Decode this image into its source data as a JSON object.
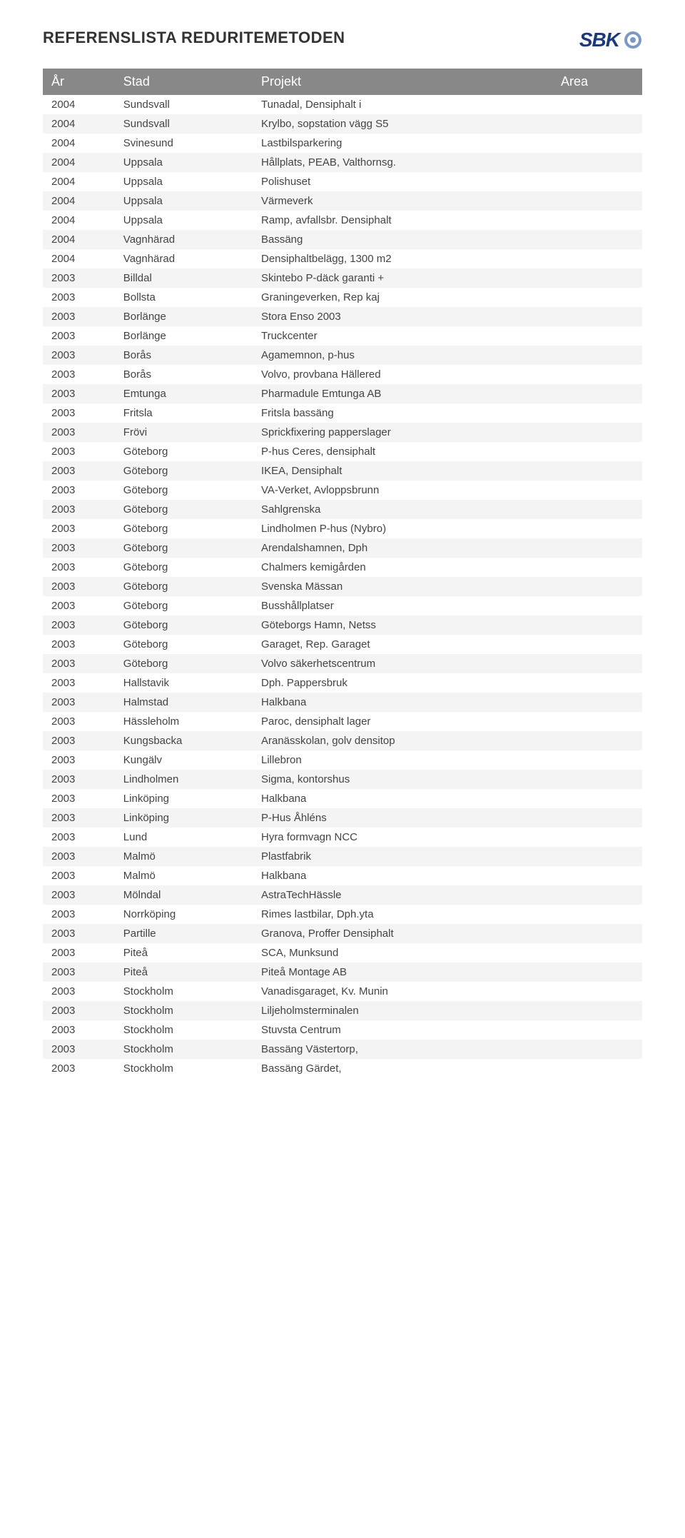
{
  "page": {
    "title": "REFERENSLISTA REDURITEMETODEN",
    "logo_text": "SBK"
  },
  "table": {
    "columns": [
      "År",
      "Stad",
      "Projekt",
      "Area"
    ],
    "header_bg": "#888888",
    "header_color": "#ffffff",
    "row_alt_bg": "#f4f4f4",
    "font_size": 15,
    "rows": [
      [
        "2004",
        "Sundsvall",
        "Tunadal, Densiphalt i",
        ""
      ],
      [
        "2004",
        "Sundsvall",
        "Krylbo, sopstation vägg S5",
        ""
      ],
      [
        "2004",
        "Svinesund",
        "Lastbilsparkering",
        ""
      ],
      [
        "2004",
        "Uppsala",
        "Hållplats, PEAB, Valthornsg.",
        ""
      ],
      [
        "2004",
        "Uppsala",
        "Polishuset",
        ""
      ],
      [
        "2004",
        "Uppsala",
        "Värmeverk",
        ""
      ],
      [
        "2004",
        "Uppsala",
        "Ramp, avfallsbr. Densiphalt",
        ""
      ],
      [
        "2004",
        "Vagnhärad",
        "Bassäng",
        ""
      ],
      [
        "2004",
        "Vagnhärad",
        "Densiphaltbelägg, 1300 m2",
        ""
      ],
      [
        "2003",
        "Billdal",
        "Skintebo P-däck garanti +",
        ""
      ],
      [
        "2003",
        "Bollsta",
        "Graningeverken, Rep kaj",
        ""
      ],
      [
        "2003",
        "Borlänge",
        "Stora Enso 2003",
        ""
      ],
      [
        "2003",
        "Borlänge",
        "Truckcenter",
        ""
      ],
      [
        "2003",
        "Borås",
        "Agamemnon, p-hus",
        ""
      ],
      [
        "2003",
        "Borås",
        "Volvo, provbana Hällered",
        ""
      ],
      [
        "2003",
        "Emtunga",
        "Pharmadule Emtunga AB",
        ""
      ],
      [
        "2003",
        "Fritsla",
        "Fritsla bassäng",
        ""
      ],
      [
        "2003",
        "Frövi",
        "Sprickfixering papperslager",
        ""
      ],
      [
        "2003",
        "Göteborg",
        "P-hus Ceres, densiphalt",
        ""
      ],
      [
        "2003",
        "Göteborg",
        "IKEA, Densiphalt",
        ""
      ],
      [
        "2003",
        "Göteborg",
        "VA-Verket, Avloppsbrunn",
        ""
      ],
      [
        "2003",
        "Göteborg",
        "Sahlgrenska",
        ""
      ],
      [
        "2003",
        "Göteborg",
        "Lindholmen P-hus (Nybro)",
        ""
      ],
      [
        "2003",
        "Göteborg",
        "Arendalshamnen, Dph",
        ""
      ],
      [
        "2003",
        "Göteborg",
        "Chalmers kemigården",
        ""
      ],
      [
        "2003",
        "Göteborg",
        "Svenska Mässan",
        ""
      ],
      [
        "2003",
        "Göteborg",
        "Busshållplatser",
        ""
      ],
      [
        "2003",
        "Göteborg",
        "Göteborgs Hamn, Netss",
        ""
      ],
      [
        "2003",
        "Göteborg",
        "Garaget, Rep. Garaget",
        ""
      ],
      [
        "2003",
        "Göteborg",
        "Volvo säkerhetscentrum",
        ""
      ],
      [
        "2003",
        "Hallstavik",
        "Dph. Pappersbruk",
        ""
      ],
      [
        "2003",
        "Halmstad",
        "Halkbana",
        ""
      ],
      [
        "2003",
        "Hässleholm",
        "Paroc, densiphalt lager",
        ""
      ],
      [
        "2003",
        "Kungsbacka",
        "Aranässkolan, golv densitop",
        ""
      ],
      [
        "2003",
        "Kungälv",
        "Lillebron",
        ""
      ],
      [
        "2003",
        "Lindholmen",
        "Sigma, kontorshus",
        ""
      ],
      [
        "2003",
        "Linköping",
        "Halkbana",
        ""
      ],
      [
        "2003",
        "Linköping",
        "P-Hus Åhléns",
        ""
      ],
      [
        "2003",
        "Lund",
        "Hyra formvagn NCC",
        ""
      ],
      [
        "2003",
        "Malmö",
        "Plastfabrik",
        ""
      ],
      [
        "2003",
        "Malmö",
        "Halkbana",
        ""
      ],
      [
        "2003",
        "Mölndal",
        "AstraTechHässle",
        ""
      ],
      [
        "2003",
        "Norrköping",
        "Rimes lastbilar, Dph.yta",
        ""
      ],
      [
        "2003",
        "Partille",
        "Granova, Proffer Densiphalt",
        ""
      ],
      [
        "2003",
        "Piteå",
        "SCA, Munksund",
        ""
      ],
      [
        "2003",
        "Piteå",
        "Piteå Montage AB",
        ""
      ],
      [
        "2003",
        "Stockholm",
        "Vanadisgaraget, Kv. Munin",
        ""
      ],
      [
        "2003",
        "Stockholm",
        "Liljeholmsterminalen",
        ""
      ],
      [
        "2003",
        "Stockholm",
        "Stuvsta Centrum",
        ""
      ],
      [
        "2003",
        "Stockholm",
        "Bassäng Västertorp,",
        ""
      ],
      [
        "2003",
        "Stockholm",
        "Bassäng Gärdet,",
        ""
      ]
    ]
  },
  "colors": {
    "title": "#333333",
    "logo_text": "#1a3a7a",
    "logo_badge_outer": "#7a9ac4",
    "logo_badge_inner": "#ffffff",
    "body_text": "#444444",
    "background": "#ffffff"
  }
}
